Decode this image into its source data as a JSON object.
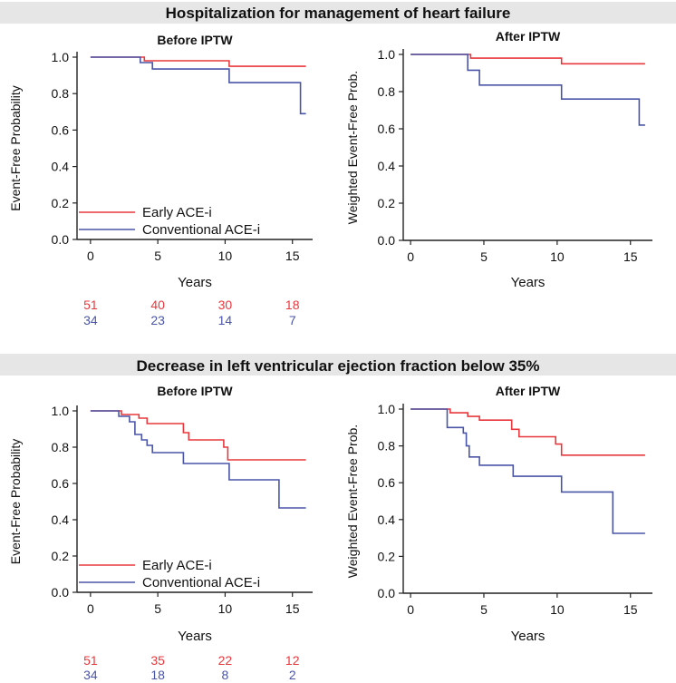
{
  "figure": {
    "sections": [
      {
        "title": "Hospitalization for management of heart failure"
      },
      {
        "title": "Decrease in left ventricular ejection fraction below 35%"
      }
    ]
  },
  "colors": {
    "early": "#e8383d",
    "conventional": "#4a55a8",
    "header_bg": "#e6e6e6",
    "axis": "#222222"
  },
  "chart_data": [
    {
      "type": "line",
      "title": "Before IPTW",
      "xlabel": "Years",
      "ylabel": "Event-Free Probability",
      "xlim": [
        -1,
        16.5
      ],
      "ylim": [
        0,
        1
      ],
      "xticks": [
        "0",
        "5",
        "10",
        "15"
      ],
      "yticks": [
        "0.0",
        "0.2",
        "0.4",
        "0.6",
        "0.8",
        "1.0"
      ],
      "legend": [
        "Early ACE-i",
        "Conventional ACE-i"
      ],
      "series": [
        {
          "name": "Early ACE-i",
          "step": [
            [
              0,
              1.0
            ],
            [
              4.0,
              1.0
            ],
            [
              4.0,
              0.98
            ],
            [
              10.3,
              0.98
            ],
            [
              10.3,
              0.95
            ],
            [
              16,
              0.95
            ]
          ]
        },
        {
          "name": "Conventional ACE-i",
          "step": [
            [
              0,
              1.0
            ],
            [
              3.7,
              1.0
            ],
            [
              3.7,
              0.97
            ],
            [
              4.6,
              0.97
            ],
            [
              4.6,
              0.935
            ],
            [
              10.3,
              0.935
            ],
            [
              10.3,
              0.86
            ],
            [
              15.6,
              0.86
            ],
            [
              15.6,
              0.69
            ],
            [
              16,
              0.69
            ]
          ]
        }
      ],
      "at_risk": {
        "early": [
          "51",
          "40",
          "30",
          "18"
        ],
        "conventional": [
          "34",
          "23",
          "14",
          "7"
        ]
      }
    },
    {
      "type": "line",
      "title": "After IPTW",
      "xlabel": "Years",
      "ylabel": "Weighted Event-Free Prob.",
      "xlim": [
        -0.5,
        16.5
      ],
      "ylim": [
        0,
        1
      ],
      "xticks": [
        "0",
        "5",
        "10",
        "15"
      ],
      "yticks": [
        "0.0",
        "0.2",
        "0.4",
        "0.6",
        "0.8",
        "1.0"
      ],
      "series": [
        {
          "name": "Early ACE-i",
          "step": [
            [
              0,
              1.0
            ],
            [
              4.1,
              1.0
            ],
            [
              4.1,
              0.98
            ],
            [
              10.3,
              0.98
            ],
            [
              10.3,
              0.95
            ],
            [
              16,
              0.95
            ]
          ]
        },
        {
          "name": "Conventional ACE-i",
          "step": [
            [
              0,
              1.0
            ],
            [
              3.9,
              1.0
            ],
            [
              3.9,
              0.915
            ],
            [
              4.7,
              0.915
            ],
            [
              4.7,
              0.835
            ],
            [
              10.3,
              0.835
            ],
            [
              10.3,
              0.76
            ],
            [
              15.6,
              0.76
            ],
            [
              15.6,
              0.62
            ],
            [
              16,
              0.62
            ]
          ]
        }
      ]
    },
    {
      "type": "line",
      "title": "Before IPTW",
      "xlabel": "Years",
      "ylabel": "Event-Free Probability",
      "xlim": [
        -1,
        16.5
      ],
      "ylim": [
        0,
        1
      ],
      "xticks": [
        "0",
        "5",
        "10",
        "15"
      ],
      "yticks": [
        "0.0",
        "0.2",
        "0.4",
        "0.6",
        "0.8",
        "1.0"
      ],
      "legend": [
        "Early ACE-i",
        "Conventional ACE-i"
      ],
      "series": [
        {
          "name": "Early ACE-i",
          "step": [
            [
              0,
              1.0
            ],
            [
              2.3,
              1.0
            ],
            [
              2.3,
              0.98
            ],
            [
              3.6,
              0.98
            ],
            [
              3.6,
              0.96
            ],
            [
              4.2,
              0.96
            ],
            [
              4.2,
              0.93
            ],
            [
              6.9,
              0.93
            ],
            [
              6.9,
              0.88
            ],
            [
              7.3,
              0.88
            ],
            [
              7.3,
              0.84
            ],
            [
              9.9,
              0.84
            ],
            [
              9.9,
              0.8
            ],
            [
              10.2,
              0.8
            ],
            [
              10.2,
              0.73
            ],
            [
              16,
              0.73
            ]
          ]
        },
        {
          "name": "Conventional ACE-i",
          "step": [
            [
              0,
              1.0
            ],
            [
              2.1,
              1.0
            ],
            [
              2.1,
              0.97
            ],
            [
              2.9,
              0.97
            ],
            [
              2.9,
              0.94
            ],
            [
              3.3,
              0.94
            ],
            [
              3.3,
              0.87
            ],
            [
              3.8,
              0.87
            ],
            [
              3.8,
              0.84
            ],
            [
              4.2,
              0.84
            ],
            [
              4.2,
              0.81
            ],
            [
              4.6,
              0.81
            ],
            [
              4.6,
              0.77
            ],
            [
              6.9,
              0.77
            ],
            [
              6.9,
              0.71
            ],
            [
              10.3,
              0.71
            ],
            [
              10.3,
              0.62
            ],
            [
              14.0,
              0.62
            ],
            [
              14.0,
              0.465
            ],
            [
              16,
              0.465
            ]
          ]
        }
      ],
      "at_risk": {
        "early": [
          "51",
          "35",
          "22",
          "12"
        ],
        "conventional": [
          "34",
          "18",
          "8",
          "2"
        ]
      }
    },
    {
      "type": "line",
      "title": "After IPTW",
      "xlabel": "Years",
      "ylabel": "Weighted Event-Free Prob.",
      "xlim": [
        -0.5,
        16.5
      ],
      "ylim": [
        0,
        1
      ],
      "xticks": [
        "0",
        "5",
        "10",
        "15"
      ],
      "yticks": [
        "0.0",
        "0.2",
        "0.4",
        "0.6",
        "0.8",
        "1.0"
      ],
      "series": [
        {
          "name": "Early ACE-i",
          "step": [
            [
              0,
              1.0
            ],
            [
              2.7,
              1.0
            ],
            [
              2.7,
              0.98
            ],
            [
              3.9,
              0.98
            ],
            [
              3.9,
              0.96
            ],
            [
              4.7,
              0.96
            ],
            [
              4.7,
              0.94
            ],
            [
              6.9,
              0.94
            ],
            [
              6.9,
              0.89
            ],
            [
              7.4,
              0.89
            ],
            [
              7.4,
              0.85
            ],
            [
              9.9,
              0.85
            ],
            [
              9.9,
              0.81
            ],
            [
              10.3,
              0.81
            ],
            [
              10.3,
              0.75
            ],
            [
              16,
              0.75
            ]
          ]
        },
        {
          "name": "Conventional ACE-i",
          "step": [
            [
              0,
              1.0
            ],
            [
              2.5,
              1.0
            ],
            [
              2.5,
              0.9
            ],
            [
              3.6,
              0.9
            ],
            [
              3.6,
              0.87
            ],
            [
              3.8,
              0.87
            ],
            [
              3.8,
              0.8
            ],
            [
              4.0,
              0.8
            ],
            [
              4.0,
              0.74
            ],
            [
              4.7,
              0.74
            ],
            [
              4.7,
              0.695
            ],
            [
              7.0,
              0.695
            ],
            [
              7.0,
              0.635
            ],
            [
              10.3,
              0.635
            ],
            [
              10.3,
              0.55
            ],
            [
              13.8,
              0.55
            ],
            [
              13.8,
              0.325
            ],
            [
              16,
              0.325
            ]
          ]
        }
      ]
    }
  ]
}
